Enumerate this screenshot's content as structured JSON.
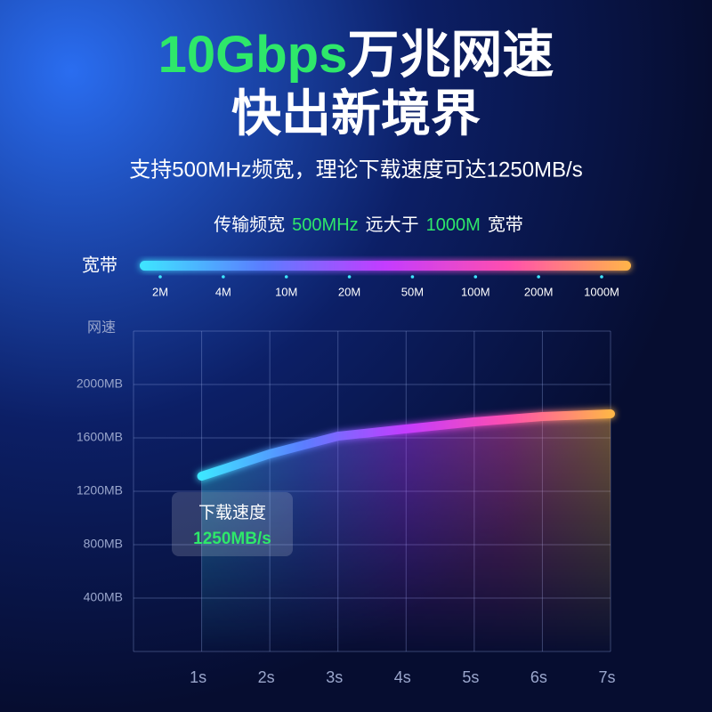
{
  "header": {
    "title_highlight": "10Gbps",
    "title_rest": "万兆网速",
    "title_line2": "快出新境界",
    "subtitle": "支持500MHz频宽，理论下载速度可达1250MB/s"
  },
  "bandwidth": {
    "parts": [
      "传输频宽",
      "500MHz",
      "远大于",
      "1000M",
      "宽带"
    ],
    "label": "宽带",
    "ticks": [
      "2M",
      "4M",
      "10M",
      "20M",
      "50M",
      "100M",
      "200M",
      "1000M"
    ]
  },
  "chart_data": {
    "type": "line",
    "y_label": "网速",
    "x": [
      1,
      2,
      3,
      4,
      5,
      6,
      7
    ],
    "values": [
      1313,
      1480,
      1613,
      1667,
      1720,
      1760,
      1780
    ],
    "xlim": [
      0,
      7
    ],
    "xticks": [
      {
        "value": 1,
        "label": "1s"
      },
      {
        "value": 2,
        "label": "2s"
      },
      {
        "value": 3,
        "label": "3s"
      },
      {
        "value": 4,
        "label": "4s"
      },
      {
        "value": 5,
        "label": "5s"
      },
      {
        "value": 6,
        "label": "6s"
      },
      {
        "value": 7,
        "label": "7s"
      }
    ],
    "ylim": [
      0,
      2400
    ],
    "yticks": [
      {
        "value": 400,
        "label": "400MB"
      },
      {
        "value": 800,
        "label": "800MB"
      },
      {
        "value": 1200,
        "label": "1200MB"
      },
      {
        "value": 1600,
        "label": "1600MB"
      },
      {
        "value": 2000,
        "label": "2000MB"
      }
    ],
    "grid": true,
    "colors": [
      "#3ee6ff",
      "#5b7dff",
      "#c43cff",
      "#ff4fae",
      "#ffb548"
    ],
    "annotation": {
      "label": "下载速度",
      "value_text": "1250MB/s"
    }
  }
}
